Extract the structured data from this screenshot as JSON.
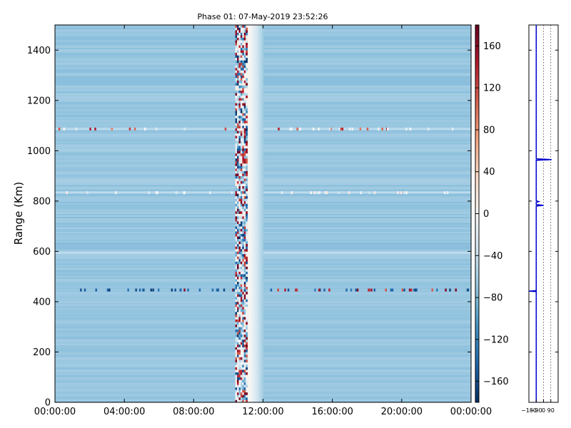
{
  "chart_data": [
    {
      "type": "heatmap",
      "title": "Phase 01: 07-May-2019 23:52:26",
      "xlabel": "",
      "ylabel": "Range (Km)",
      "x_ticks": [
        "00:00:00",
        "04:00:00",
        "08:00:00",
        "12:00:00",
        "16:00:00",
        "20:00:00",
        "00:00:00"
      ],
      "x_range_hours": [
        0,
        24
      ],
      "y_ticks": [
        0,
        200,
        400,
        600,
        800,
        1000,
        1200,
        1400
      ],
      "ylim": [
        0,
        1500
      ],
      "colorbar": {
        "ticks": [
          160,
          120,
          80,
          40,
          0,
          -40,
          -80,
          -120,
          -160
        ],
        "vmin": -180,
        "vmax": 180,
        "colormap": "RdBu_r",
        "colors": {
          "low": "#053061",
          "mid": "#f7f7f7",
          "high": "#67001f",
          "background": "#8fbfdd"
        }
      },
      "features": {
        "background_phase": -65,
        "noisy_band_hours": [
          10.4,
          11.1
        ],
        "gradient_band_hours": [
          11.1,
          12.0
        ],
        "bright_rows_km": [
          1088,
          835,
          596
        ],
        "speckled_rows_km": [
          448
        ]
      }
    },
    {
      "type": "line",
      "x_ticks": [
        "-180",
        "-90",
        "0",
        "90"
      ],
      "xlim": [
        -180,
        180
      ],
      "ylim": [
        0,
        1500
      ],
      "grid": "vertical dotted",
      "series": [
        {
          "color": "#0000cc",
          "points": [
            [
              -90,
              0
            ],
            [
              -90,
              440
            ],
            [
              -180,
              442
            ],
            [
              -90,
              444
            ],
            [
              -90,
              780
            ],
            [
              0,
              783
            ],
            [
              -90,
              786
            ],
            [
              -90,
              795
            ],
            [
              -60,
              798
            ],
            [
              -90,
              801
            ],
            [
              -90,
              960
            ],
            [
              -90,
              962
            ],
            [
              100,
              965
            ],
            [
              -90,
              968
            ],
            [
              -90,
              1500
            ]
          ]
        }
      ]
    }
  ]
}
